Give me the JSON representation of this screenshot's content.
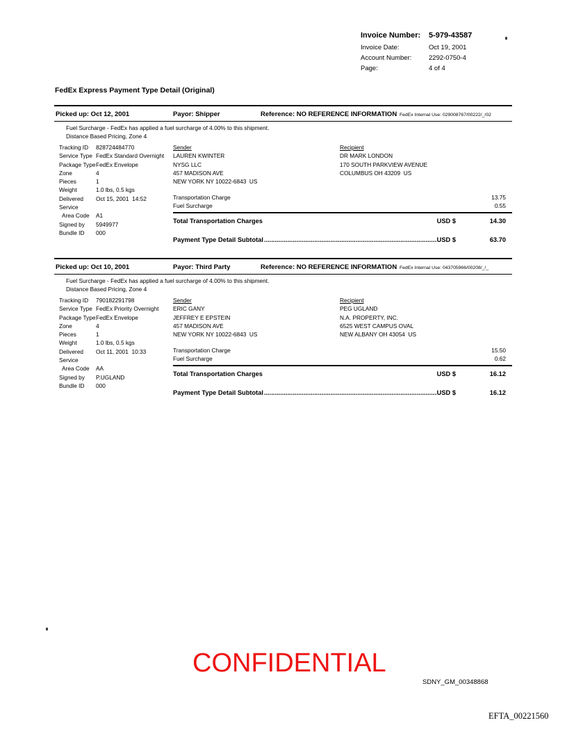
{
  "invoice_header": {
    "number_label": "Invoice Number:",
    "number_value": "5-979-43587",
    "date_label": "Invoice Date:",
    "date_value": "Oct 19, 2001",
    "account_label": "Account Number:",
    "account_value": "2292-0750-4",
    "page_label": "Page:",
    "page_value": "4 of 4"
  },
  "title": "FedEx Express Payment Type Detail (Original)",
  "sections": [
    {
      "picked_up": "Picked up: Oct 12, 2001",
      "payor": "Payor: Shipper",
      "reference": "Reference: NO REFERENCE INFORMATION",
      "internal_use": "FedEx Internal Use: 029008767/00222/_/02",
      "note_1": "Fuel Surcharge - FedEx has applied a fuel surcharge of 4.00% to this shipment.",
      "note_2": "Distance Based Pricing, Zone 4",
      "details": [
        {
          "label": "Tracking ID",
          "value": "828724484770"
        },
        {
          "label": "Service Type",
          "value": "FedEx Standard Overnight"
        },
        {
          "label": "Package Type",
          "value": "FedEx Envelope"
        },
        {
          "label": "Zone",
          "value": "4"
        },
        {
          "label": "Pieces",
          "value": "1"
        },
        {
          "label": "Weight",
          "value": "1.0 lbs, 0.5 kgs"
        },
        {
          "label": "Delivered",
          "value": "Oct 15, 2001  14:52"
        },
        {
          "label": "Service",
          "value": ""
        },
        {
          "label": "Area Code",
          "value": "A1"
        },
        {
          "label": "Signed by",
          "value": "5949977"
        },
        {
          "label": "Bundle ID",
          "value": "000"
        }
      ],
      "sender": {
        "heading": "Sender",
        "lines": [
          "LAUREN KWINTER",
          "NYSG LLC",
          "457 MADISON AVE",
          "NEW YORK NY 10022-6843  US"
        ]
      },
      "recipient": {
        "heading": "Recipient",
        "lines": [
          "DR MARK LONDON",
          "170 SOUTH PARKVIEW AVENUE",
          "COLUMBUS OH 43209  US"
        ]
      },
      "charges": [
        {
          "label": "Transportation Charge",
          "amount": "13.75"
        },
        {
          "label": "Fuel Surcharge",
          "amount": "0.55"
        }
      ],
      "total": {
        "label": "Total Transportation Charges",
        "currency": "USD $",
        "amount": "14.30"
      },
      "subtotal": {
        "label": "Payment Type Detail Subtotal",
        "currency": "USD $",
        "amount": "63.70"
      }
    },
    {
      "picked_up": "Picked up: Oct 10, 2001",
      "payor": "Payor: Third Party",
      "reference": "Reference: NO REFERENCE INFORMATION",
      "internal_use": "FedEx Internal Use: 043705966/00208/_/_",
      "note_1": "Fuel Surcharge - FedEx has applied a fuel surcharge of 4.00% to this shipment.",
      "note_2": "Distance Based Pricing, Zone 4",
      "details": [
        {
          "label": "Tracking ID",
          "value": "790182291798"
        },
        {
          "label": "Service Type",
          "value": "FedEx Priority Overnight"
        },
        {
          "label": "Package Type",
          "value": "FedEx Envelope"
        },
        {
          "label": "Zone",
          "value": "4"
        },
        {
          "label": "Pieces",
          "value": "1"
        },
        {
          "label": "Weight",
          "value": "1.0 lbs, 0.5 kgs"
        },
        {
          "label": "Delivered",
          "value": "Oct 11, 2001  10:33"
        },
        {
          "label": "Service",
          "value": ""
        },
        {
          "label": "Area Code",
          "value": "AA"
        },
        {
          "label": "Signed by",
          "value": "P.UGLAND"
        },
        {
          "label": "Bundle ID",
          "value": "000"
        }
      ],
      "sender": {
        "heading": "Sender",
        "lines": [
          "ERIC GANY",
          "JEFFREY E EPSTEIN",
          "457 MADISON AVE",
          "NEW YORK NY 10022-6843  US"
        ]
      },
      "recipient": {
        "heading": "Recipient",
        "lines": [
          "PEG UGLAND",
          "N.A. PROPERTY, INC.",
          "6525 WEST CAMPUS OVAL",
          "NEW ALBANY OH 43054  US"
        ]
      },
      "charges": [
        {
          "label": "Transportation Charge",
          "amount": "15.50"
        },
        {
          "label": "Fuel Surcharge",
          "amount": "0.62"
        }
      ],
      "total": {
        "label": "Total Transportation Charges",
        "currency": "USD $",
        "amount": "16.12"
      },
      "subtotal": {
        "label": "Payment Type Detail Subtotal",
        "currency": "USD $",
        "amount": "16.12"
      }
    }
  ],
  "footer": {
    "confidential": "CONFIDENTIAL",
    "confidential_color": "#ee1111",
    "bates": "SDNY_GM_00348868",
    "exhibit": "EFTA_00221560"
  }
}
